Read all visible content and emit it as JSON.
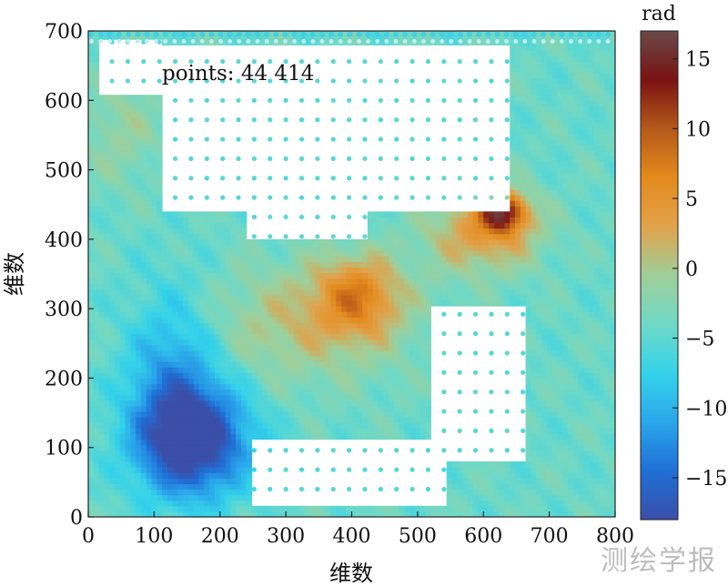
{
  "chart_data": {
    "type": "heatmap",
    "title": "",
    "annotation": "points: 44 414",
    "xlabel": "维数",
    "ylabel": "维数",
    "xlim": [
      0,
      800
    ],
    "ylim": [
      0,
      700
    ],
    "x_ticks": [
      0,
      100,
      200,
      300,
      400,
      500,
      600,
      700,
      800
    ],
    "y_ticks": [
      0,
      100,
      200,
      300,
      400,
      500,
      600,
      700
    ],
    "colorbar": {
      "title": "rad",
      "range": [
        -18,
        17
      ],
      "ticks": [
        15,
        10,
        5,
        0,
        -5,
        -10,
        -15
      ],
      "tick_labels": [
        "15",
        "10",
        "5",
        "0",
        "−5",
        "−10",
        "−15"
      ],
      "colormap": [
        "#3a4fa8",
        "#1f6fd6",
        "#2aa6ea",
        "#34d3ea",
        "#6fd9c6",
        "#9fcf9a",
        "#e1a24a",
        "#e38a1c",
        "#b5591a",
        "#7a1212",
        "#6a4a4a"
      ]
    },
    "colors": {
      "negative_field": "#45d3ea",
      "blue_region": "#1f6fd6",
      "orange_region": "#e38a1c",
      "dark_peak": "#7a1212",
      "empty": "#ffffff"
    },
    "phase_blobs": [
      {
        "name": "bottom-left negative low",
        "x": 160,
        "y": 110,
        "sx": 60,
        "sy": 55,
        "amp": -15
      },
      {
        "name": "left negative",
        "x": 130,
        "y": 200,
        "sx": 50,
        "sy": 90,
        "amp": -7
      },
      {
        "name": "upper-left positive",
        "x": 50,
        "y": 560,
        "sx": 40,
        "sy": 60,
        "amp": 3
      },
      {
        "name": "central ridge",
        "x": 330,
        "y": 280,
        "sx": 110,
        "sy": 60,
        "amp": 5
      },
      {
        "name": "central peak",
        "x": 410,
        "y": 320,
        "sx": 45,
        "sy": 40,
        "amp": 9
      },
      {
        "name": "upper-right lobe",
        "x": 600,
        "y": 410,
        "sx": 60,
        "sy": 40,
        "amp": 8
      },
      {
        "name": "upper-right peak",
        "x": 630,
        "y": 440,
        "sx": 25,
        "sy": 20,
        "amp": 15
      }
    ],
    "voids": [
      {
        "x_range": [
          110,
          640
        ],
        "y_range": [
          440,
          680
        ]
      },
      {
        "x_range": [
          240,
          420
        ],
        "y_range": [
          400,
          470
        ]
      },
      {
        "x_range": [
          520,
          660
        ],
        "y_range": [
          80,
          300
        ]
      },
      {
        "x_range": [
          250,
          540
        ],
        "y_range": [
          20,
          110
        ]
      },
      {
        "x_range": [
          20,
          110
        ],
        "y_range": [
          610,
          690
        ]
      }
    ]
  },
  "watermark": "测绘学报"
}
